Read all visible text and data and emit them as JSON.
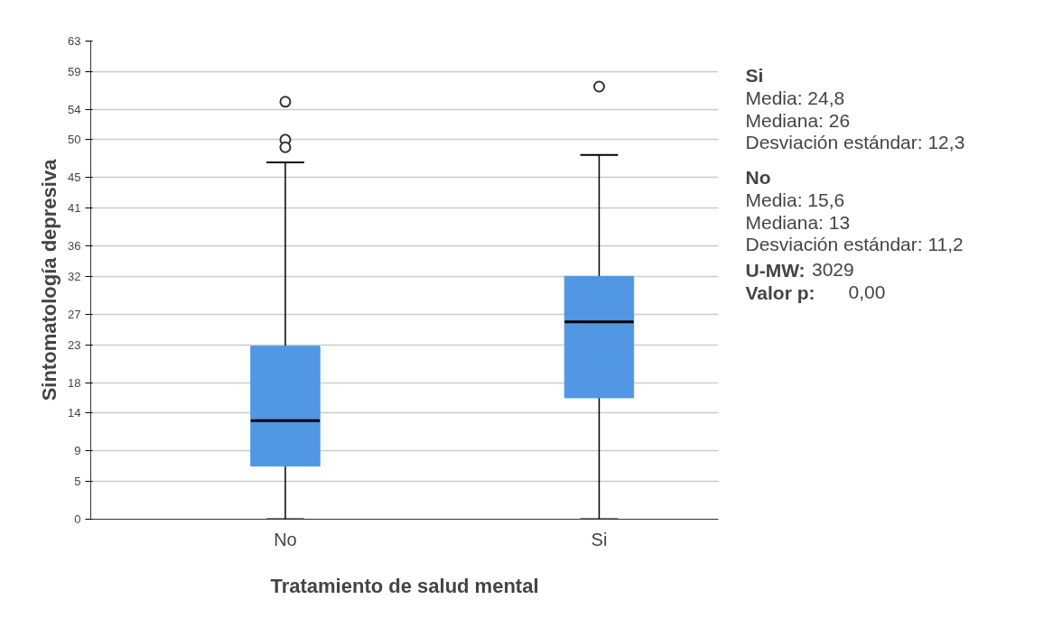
{
  "chart_data": {
    "type": "box",
    "xlabel": "Tratamiento de salud mental",
    "ylabel": "Sintomatología depresiva",
    "categories": [
      "No",
      "Si"
    ],
    "boxes": [
      {
        "low": 0,
        "q1": 7,
        "median": 13,
        "q3": 22.8,
        "high": 47,
        "outliers": [
          55,
          50,
          49
        ]
      },
      {
        "low": 0,
        "q1": 16,
        "median": 26,
        "q3": 32,
        "high": 48,
        "outliers": [
          57
        ]
      }
    ],
    "color": "#5197e3",
    "ylim": [
      0,
      63
    ],
    "yticks": [
      0,
      5,
      9,
      14,
      18,
      23,
      27,
      32,
      36,
      41,
      45,
      50,
      54,
      59,
      63
    ],
    "grid": "y",
    "annotations": [
      "Si",
      "Media: 24,8",
      "Mediana: 26",
      "Desviación estándar: 12,3",
      "No",
      "Media: 15,6",
      "Mediana: 13",
      "Desviación estándar: 11,2",
      "U-MW: 3029",
      "Valor p: 0,00"
    ]
  }
}
